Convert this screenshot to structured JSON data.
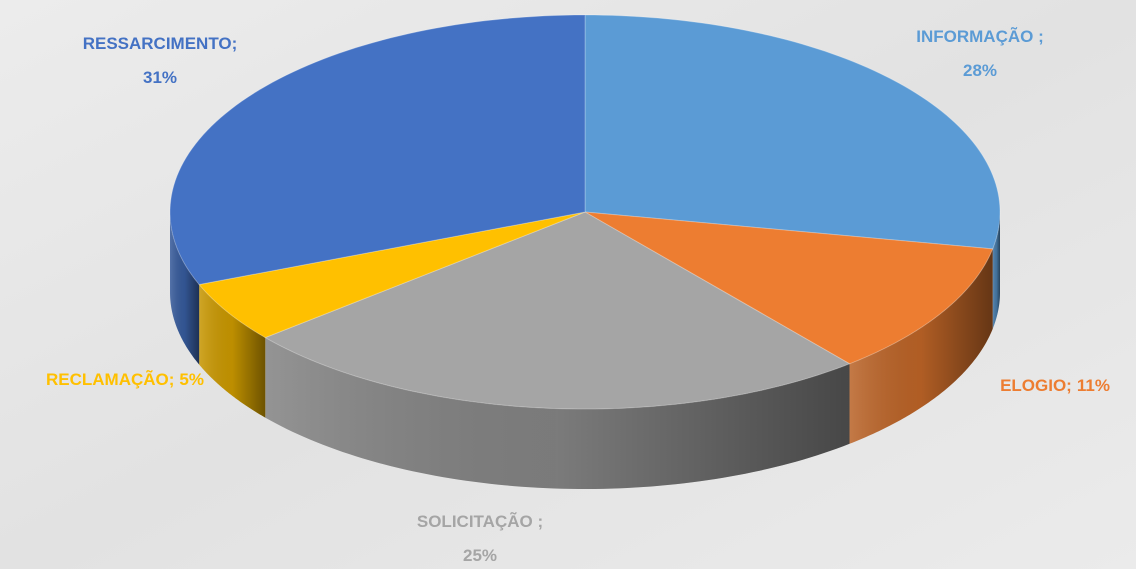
{
  "chart_data": {
    "type": "pie3d",
    "categories": [
      "INFORMAÇÃO ;",
      "ELOGIO;",
      "SOLICITAÇÃO ;",
      "RECLAMAÇÃO;",
      "RESSARCIMENTO;"
    ],
    "values": [
      28,
      11,
      25,
      5,
      31
    ],
    "value_labels": [
      "28%",
      "11%",
      "25%",
      "5%",
      "31%"
    ],
    "colors": [
      "#5b9bd5",
      "#ed7d31",
      "#a5a5a5",
      "#ffc000",
      "#4472c4"
    ]
  }
}
